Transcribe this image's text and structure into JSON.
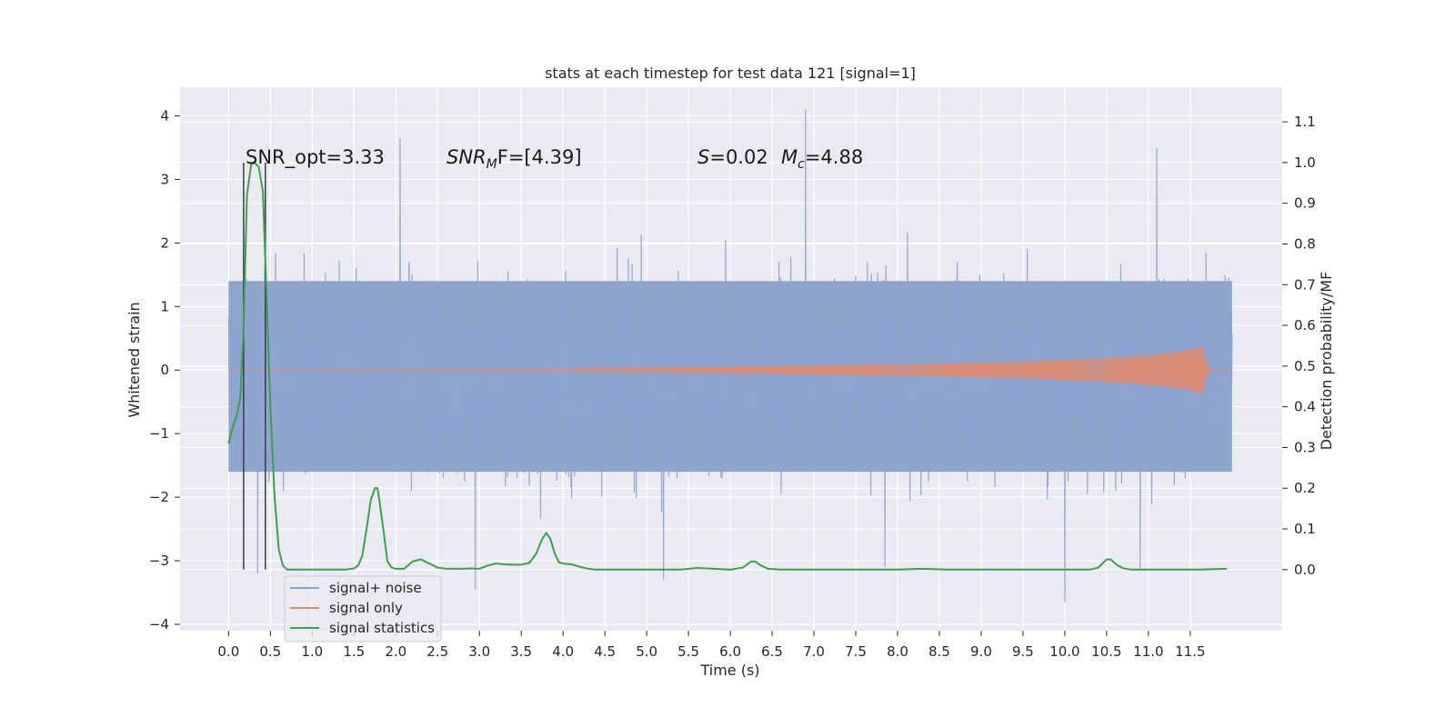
{
  "chart_data": {
    "type": "line",
    "title": "stats at each timestep for test data 121 [signal=1]",
    "xlabel": "Time (s)",
    "ylabel": "Whitened strain",
    "ylabel_right": "Detection probability/MF",
    "xlim": [
      -0.58,
      12.6
    ],
    "ylim": [
      -4.1,
      4.45
    ],
    "ylim_right": [
      -0.15,
      1.185
    ],
    "xticks": [
      "0.0",
      "0.5",
      "1.0",
      "1.5",
      "2.0",
      "2.5",
      "3.0",
      "3.5",
      "4.0",
      "4.5",
      "5.0",
      "5.5",
      "6.0",
      "6.5",
      "7.0",
      "7.5",
      "8.0",
      "8.5",
      "9.0",
      "9.5",
      "10.0",
      "10.5",
      "11.0",
      "11.5"
    ],
    "yticks_left": [
      "4",
      "3",
      "2",
      "1",
      "0",
      "−1",
      "−2",
      "−3",
      "−4"
    ],
    "yticks_right": [
      "1.1",
      "1.0",
      "0.9",
      "0.8",
      "0.7",
      "0.6",
      "0.5",
      "0.4",
      "0.3",
      "0.2",
      "0.1",
      "0.0"
    ],
    "grid": true,
    "legend_position": "lower-left",
    "annotations": {
      "snr_opt": "SNR_opt=3.33",
      "snr_mf_main": "SNR",
      "snr_mf_sub": "M",
      "snr_mf_rest": "F=[4.39]",
      "s_var": "S",
      "s_val": "=0.02",
      "mc_var": "M",
      "mc_sub": "c",
      "mc_val": "=4.88"
    },
    "vlines_x": [
      0.18,
      0.44
    ],
    "series": [
      {
        "name": "signal+ noise",
        "color": "#8fa4cd",
        "axis": "left",
        "description_values": {
          "duration_s": 12.0,
          "typical_band": [
            -1.6,
            1.4
          ],
          "peak_values": [
            {
              "x": 0.35,
              "y": -3.2
            },
            {
              "x": 2.05,
              "y": 3.65
            },
            {
              "x": 2.95,
              "y": -3.45
            },
            {
              "x": 5.2,
              "y": -3.3
            },
            {
              "x": 6.9,
              "y": 4.1
            },
            {
              "x": 7.85,
              "y": -3.1
            },
            {
              "x": 10.0,
              "y": -3.65
            },
            {
              "x": 11.1,
              "y": 3.5
            },
            {
              "x": 10.9,
              "y": -3.15
            }
          ]
        }
      },
      {
        "name": "signal only",
        "color": "#dd8c73",
        "axis": "left",
        "envelope": [
          [
            0.0,
            0.0
          ],
          [
            4.0,
            0.015
          ],
          [
            6.0,
            0.05
          ],
          [
            7.5,
            0.08
          ],
          [
            8.5,
            0.1
          ],
          [
            9.5,
            0.13
          ],
          [
            10.2,
            0.17
          ],
          [
            10.8,
            0.21
          ],
          [
            11.2,
            0.26
          ],
          [
            11.5,
            0.32
          ],
          [
            11.65,
            0.38
          ],
          [
            11.7,
            0.1
          ],
          [
            11.75,
            0.0
          ],
          [
            12.0,
            0.0
          ]
        ]
      },
      {
        "name": "signal statistics",
        "color": "#3f9e4f",
        "axis": "right",
        "points": [
          [
            0.0,
            0.31
          ],
          [
            0.05,
            0.35
          ],
          [
            0.1,
            0.38
          ],
          [
            0.14,
            0.42
          ],
          [
            0.18,
            0.6
          ],
          [
            0.22,
            0.92
          ],
          [
            0.27,
            0.995
          ],
          [
            0.31,
            1.0
          ],
          [
            0.36,
            0.99
          ],
          [
            0.41,
            0.93
          ],
          [
            0.45,
            0.7
          ],
          [
            0.5,
            0.4
          ],
          [
            0.55,
            0.18
          ],
          [
            0.6,
            0.05
          ],
          [
            0.65,
            0.01
          ],
          [
            0.7,
            0.0
          ],
          [
            0.8,
            0.0
          ],
          [
            1.0,
            0.0
          ],
          [
            1.2,
            0.0
          ],
          [
            1.4,
            0.0
          ],
          [
            1.5,
            0.003
          ],
          [
            1.55,
            0.01
          ],
          [
            1.6,
            0.035
          ],
          [
            1.65,
            0.1
          ],
          [
            1.7,
            0.17
          ],
          [
            1.75,
            0.2
          ],
          [
            1.78,
            0.2
          ],
          [
            1.8,
            0.175
          ],
          [
            1.85,
            0.1
          ],
          [
            1.9,
            0.02
          ],
          [
            1.95,
            0.005
          ],
          [
            2.0,
            0.002
          ],
          [
            2.1,
            0.002
          ],
          [
            2.2,
            0.02
          ],
          [
            2.3,
            0.025
          ],
          [
            2.4,
            0.015
          ],
          [
            2.5,
            0.005
          ],
          [
            2.6,
            0.002
          ],
          [
            2.8,
            0.002
          ],
          [
            2.9,
            0.003
          ],
          [
            3.0,
            0.002
          ],
          [
            3.1,
            0.01
          ],
          [
            3.2,
            0.015
          ],
          [
            3.3,
            0.013
          ],
          [
            3.4,
            0.012
          ],
          [
            3.5,
            0.012
          ],
          [
            3.6,
            0.017
          ],
          [
            3.68,
            0.04
          ],
          [
            3.75,
            0.075
          ],
          [
            3.8,
            0.09
          ],
          [
            3.85,
            0.075
          ],
          [
            3.9,
            0.04
          ],
          [
            3.95,
            0.018
          ],
          [
            4.0,
            0.015
          ],
          [
            4.1,
            0.013
          ],
          [
            4.2,
            0.007
          ],
          [
            4.3,
            0.002
          ],
          [
            4.4,
            0.0
          ],
          [
            5.0,
            0.0
          ],
          [
            5.4,
            0.0
          ],
          [
            5.6,
            0.004
          ],
          [
            5.8,
            0.002
          ],
          [
            6.0,
            0.0
          ],
          [
            6.15,
            0.005
          ],
          [
            6.25,
            0.02
          ],
          [
            6.3,
            0.02
          ],
          [
            6.35,
            0.012
          ],
          [
            6.45,
            0.002
          ],
          [
            6.6,
            0.0
          ],
          [
            7.0,
            0.0
          ],
          [
            7.6,
            0.0
          ],
          [
            8.0,
            0.0
          ],
          [
            8.3,
            0.002
          ],
          [
            8.6,
            0.0
          ],
          [
            9.0,
            0.0
          ],
          [
            9.6,
            0.0
          ],
          [
            10.0,
            0.0
          ],
          [
            10.3,
            0.0
          ],
          [
            10.4,
            0.005
          ],
          [
            10.5,
            0.025
          ],
          [
            10.55,
            0.025
          ],
          [
            10.62,
            0.012
          ],
          [
            10.7,
            0.003
          ],
          [
            10.8,
            0.0
          ],
          [
            11.2,
            0.0
          ],
          [
            11.6,
            0.0
          ],
          [
            11.94,
            0.002
          ]
        ]
      }
    ]
  }
}
